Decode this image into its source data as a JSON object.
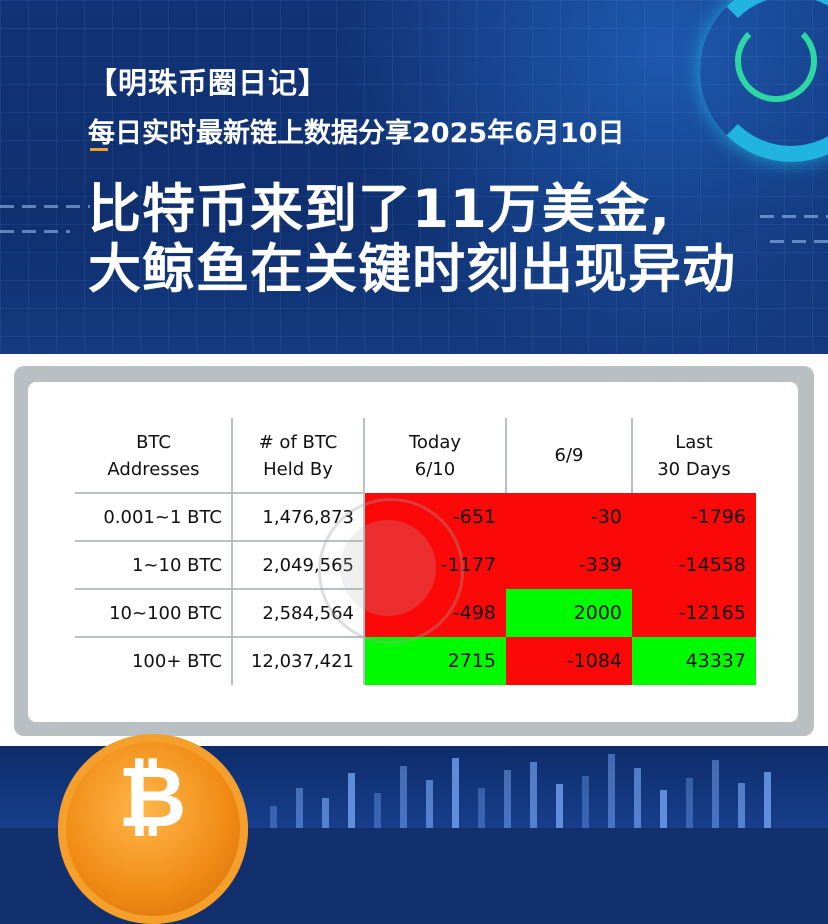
{
  "header": {
    "tag": "【明珠币圈日记】",
    "subtitle": "每日实时最新链上数据分享2025年6月10日",
    "headline_line1": "比特币来到了11万美金,",
    "headline_line2": "大鲸鱼在关键时刻出现异动"
  },
  "table": {
    "columns": [
      "BTC\nAddresses",
      "# of BTC\nHeld By",
      "Today\n6/10",
      "6/9",
      "Last\n30 Days"
    ],
    "rows": [
      {
        "range": "0.001~1 BTC",
        "held_by": "1,476,873",
        "today": "-651",
        "prev": "-30",
        "last30": "-1796"
      },
      {
        "range": "1~10 BTC",
        "held_by": "2,049,565",
        "today": "-1177",
        "prev": "-339",
        "last30": "-14558"
      },
      {
        "range": "10~100 BTC",
        "held_by": "2,584,564",
        "today": "-498",
        "prev": "2000",
        "last30": "-12165"
      },
      {
        "range": "100+ BTC",
        "held_by": "12,037,421",
        "today": "2715",
        "prev": "-1084",
        "last30": "43337"
      }
    ],
    "colors": {
      "negative": "#fb0808",
      "positive": "#00fb00"
    }
  },
  "decor": {
    "coin_icon": "bitcoin-coin-icon",
    "coin_symbol": "₿",
    "watermark": "watermark-seal-icon",
    "clock_icon": "clock-ring-icon"
  }
}
